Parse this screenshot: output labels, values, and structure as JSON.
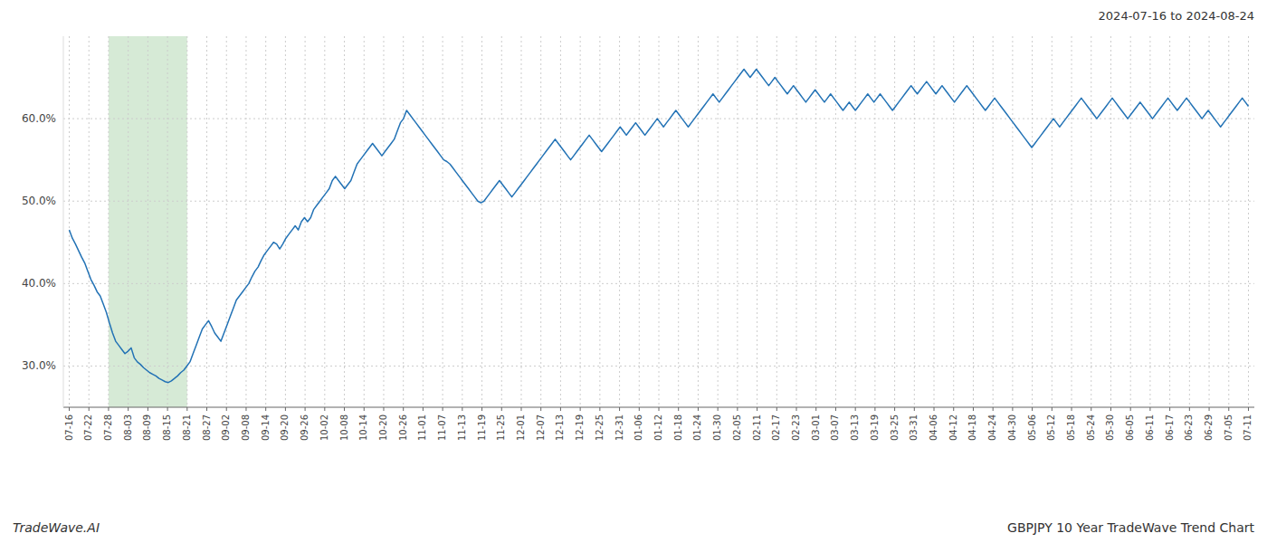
{
  "chart_data": {
    "type": "line",
    "title": "GBPJPY 10 Year TradeWave Trend Chart",
    "subtitle": "2024-07-16 to 2024-08-24",
    "annotations": [
      "TradeWave.AI"
    ],
    "color": "#2272B5",
    "grid": true,
    "ylim": [
      25,
      70
    ],
    "yticks": [
      {
        "value": 30.0,
        "label": "30.0%"
      },
      {
        "value": 40.0,
        "label": "40.0%"
      },
      {
        "value": 50.0,
        "label": "50.0%"
      },
      {
        "value": 60.0,
        "label": "60.0%"
      }
    ],
    "xlim": [
      -0.3,
      60.3
    ],
    "xticks": [
      {
        "value": 0,
        "label": "07-16"
      },
      {
        "value": 1,
        "label": "07-22"
      },
      {
        "value": 2,
        "label": "07-28"
      },
      {
        "value": 3,
        "label": "08-03"
      },
      {
        "value": 4,
        "label": "08-09"
      },
      {
        "value": 5,
        "label": "08-15"
      },
      {
        "value": 6,
        "label": "08-21"
      },
      {
        "value": 7,
        "label": "08-27"
      },
      {
        "value": 8,
        "label": "09-02"
      },
      {
        "value": 9,
        "label": "09-08"
      },
      {
        "value": 10,
        "label": "09-14"
      },
      {
        "value": 11,
        "label": "09-20"
      },
      {
        "value": 12,
        "label": "09-26"
      },
      {
        "value": 13,
        "label": "10-02"
      },
      {
        "value": 14,
        "label": "10-08"
      },
      {
        "value": 15,
        "label": "10-14"
      },
      {
        "value": 16,
        "label": "10-20"
      },
      {
        "value": 17,
        "label": "10-26"
      },
      {
        "value": 18,
        "label": "11-01"
      },
      {
        "value": 19,
        "label": "11-07"
      },
      {
        "value": 20,
        "label": "11-13"
      },
      {
        "value": 21,
        "label": "11-19"
      },
      {
        "value": 22,
        "label": "11-25"
      },
      {
        "value": 23,
        "label": "12-01"
      },
      {
        "value": 24,
        "label": "12-07"
      },
      {
        "value": 25,
        "label": "12-13"
      },
      {
        "value": 26,
        "label": "12-19"
      },
      {
        "value": 27,
        "label": "12-25"
      },
      {
        "value": 28,
        "label": "12-31"
      },
      {
        "value": 29,
        "label": "01-06"
      },
      {
        "value": 30,
        "label": "01-12"
      },
      {
        "value": 31,
        "label": "01-18"
      },
      {
        "value": 32,
        "label": "01-24"
      },
      {
        "value": 33,
        "label": "01-30"
      },
      {
        "value": 34,
        "label": "02-05"
      },
      {
        "value": 35,
        "label": "02-11"
      },
      {
        "value": 36,
        "label": "02-17"
      },
      {
        "value": 37,
        "label": "02-23"
      },
      {
        "value": 38,
        "label": "03-01"
      },
      {
        "value": 39,
        "label": "03-07"
      },
      {
        "value": 40,
        "label": "03-13"
      },
      {
        "value": 41,
        "label": "03-19"
      },
      {
        "value": 42,
        "label": "03-25"
      },
      {
        "value": 43,
        "label": "03-31"
      },
      {
        "value": 44,
        "label": "04-06"
      },
      {
        "value": 45,
        "label": "04-12"
      },
      {
        "value": 46,
        "label": "04-18"
      },
      {
        "value": 47,
        "label": "04-24"
      },
      {
        "value": 48,
        "label": "04-30"
      },
      {
        "value": 49,
        "label": "05-06"
      },
      {
        "value": 50,
        "label": "05-12"
      },
      {
        "value": 51,
        "label": "05-18"
      },
      {
        "value": 52,
        "label": "05-24"
      },
      {
        "value": 53,
        "label": "05-30"
      },
      {
        "value": 54,
        "label": "06-05"
      },
      {
        "value": 55,
        "label": "06-11"
      },
      {
        "value": 56,
        "label": "06-17"
      },
      {
        "value": 57,
        "label": "06-23"
      },
      {
        "value": 58,
        "label": "06-29"
      },
      {
        "value": 59,
        "label": "07-05"
      },
      {
        "value": 60,
        "label": "07-11"
      }
    ],
    "highlight": {
      "from": 2,
      "to": 6,
      "color": "#d6ead6"
    },
    "values": [
      46.5,
      45.5,
      44.8,
      44.0,
      43.2,
      42.5,
      41.5,
      40.5,
      39.8,
      39.0,
      38.5,
      37.5,
      36.5,
      35.2,
      34.0,
      33.0,
      32.5,
      32.0,
      31.5,
      31.8,
      32.2,
      31.0,
      30.5,
      30.2,
      29.8,
      29.5,
      29.2,
      29.0,
      28.8,
      28.5,
      28.3,
      28.1,
      28.0,
      28.2,
      28.5,
      28.8,
      29.2,
      29.5,
      30.0,
      30.5,
      31.5,
      32.5,
      33.5,
      34.5,
      35.0,
      35.5,
      34.8,
      34.0,
      33.5,
      33.0,
      34.0,
      35.0,
      36.0,
      37.0,
      38.0,
      38.5,
      39.0,
      39.5,
      40.0,
      40.8,
      41.5,
      42.0,
      42.8,
      43.5,
      44.0,
      44.5,
      45.0,
      44.8,
      44.2,
      44.8,
      45.5,
      46.0,
      46.5,
      47.0,
      46.5,
      47.5,
      48.0,
      47.5,
      48.0,
      49.0,
      49.5,
      50.0,
      50.5,
      51.0,
      51.5,
      52.5,
      53.0,
      52.5,
      52.0,
      51.5,
      52.0,
      52.5,
      53.5,
      54.5,
      55.0,
      55.5,
      56.0,
      56.5,
      57.0,
      56.5,
      56.0,
      55.5,
      56.0,
      56.5,
      57.0,
      57.5,
      58.5,
      59.5,
      60.0,
      61.0,
      60.5,
      60.0,
      59.5,
      59.0,
      58.5,
      58.0,
      57.5,
      57.0,
      56.5,
      56.0,
      55.5,
      55.0,
      54.8,
      54.5,
      54.0,
      53.5,
      53.0,
      52.5,
      52.0,
      51.5,
      51.0,
      50.5,
      50.0,
      49.8,
      50.0,
      50.5,
      51.0,
      51.5,
      52.0,
      52.5,
      52.0,
      51.5,
      51.0,
      50.5,
      51.0,
      51.5,
      52.0,
      52.5,
      53.0,
      53.5,
      54.0,
      54.5,
      55.0,
      55.5,
      56.0,
      56.5,
      57.0,
      57.5,
      57.0,
      56.5,
      56.0,
      55.5,
      55.0,
      55.5,
      56.0,
      56.5,
      57.0,
      57.5,
      58.0,
      57.5,
      57.0,
      56.5,
      56.0,
      56.5,
      57.0,
      57.5,
      58.0,
      58.5,
      59.0,
      58.5,
      58.0,
      58.5,
      59.0,
      59.5,
      59.0,
      58.5,
      58.0,
      58.5,
      59.0,
      59.5,
      60.0,
      59.5,
      59.0,
      59.5,
      60.0,
      60.5,
      61.0,
      60.5,
      60.0,
      59.5,
      59.0,
      59.5,
      60.0,
      60.5,
      61.0,
      61.5,
      62.0,
      62.5,
      63.0,
      62.5,
      62.0,
      62.5,
      63.0,
      63.5,
      64.0,
      64.5,
      65.0,
      65.5,
      66.0,
      65.5,
      65.0,
      65.5,
      66.0,
      65.5,
      65.0,
      64.5,
      64.0,
      64.5,
      65.0,
      64.5,
      64.0,
      63.5,
      63.0,
      63.5,
      64.0,
      63.5,
      63.0,
      62.5,
      62.0,
      62.5,
      63.0,
      63.5,
      63.0,
      62.5,
      62.0,
      62.5,
      63.0,
      62.5,
      62.0,
      61.5,
      61.0,
      61.5,
      62.0,
      61.5,
      61.0,
      61.5,
      62.0,
      62.5,
      63.0,
      62.5,
      62.0,
      62.5,
      63.0,
      62.5,
      62.0,
      61.5,
      61.0,
      61.5,
      62.0,
      62.5,
      63.0,
      63.5,
      64.0,
      63.5,
      63.0,
      63.5,
      64.0,
      64.5,
      64.0,
      63.5,
      63.0,
      63.5,
      64.0,
      63.5,
      63.0,
      62.5,
      62.0,
      62.5,
      63.0,
      63.5,
      64.0,
      63.5,
      63.0,
      62.5,
      62.0,
      61.5,
      61.0,
      61.5,
      62.0,
      62.5,
      62.0,
      61.5,
      61.0,
      60.5,
      60.0,
      59.5,
      59.0,
      58.5,
      58.0,
      57.5,
      57.0,
      56.5,
      57.0,
      57.5,
      58.0,
      58.5,
      59.0,
      59.5,
      60.0,
      59.5,
      59.0,
      59.5,
      60.0,
      60.5,
      61.0,
      61.5,
      62.0,
      62.5,
      62.0,
      61.5,
      61.0,
      60.5,
      60.0,
      60.5,
      61.0,
      61.5,
      62.0,
      62.5,
      62.0,
      61.5,
      61.0,
      60.5,
      60.0,
      60.5,
      61.0,
      61.5,
      62.0,
      61.5,
      61.0,
      60.5,
      60.0,
      60.5,
      61.0,
      61.5,
      62.0,
      62.5,
      62.0,
      61.5,
      61.0,
      61.5,
      62.0,
      62.5,
      62.0,
      61.5,
      61.0,
      60.5,
      60.0,
      60.5,
      61.0,
      60.5,
      60.0,
      59.5,
      59.0,
      59.5,
      60.0,
      60.5,
      61.0,
      61.5,
      62.0,
      62.5,
      62.0,
      61.5
    ]
  }
}
